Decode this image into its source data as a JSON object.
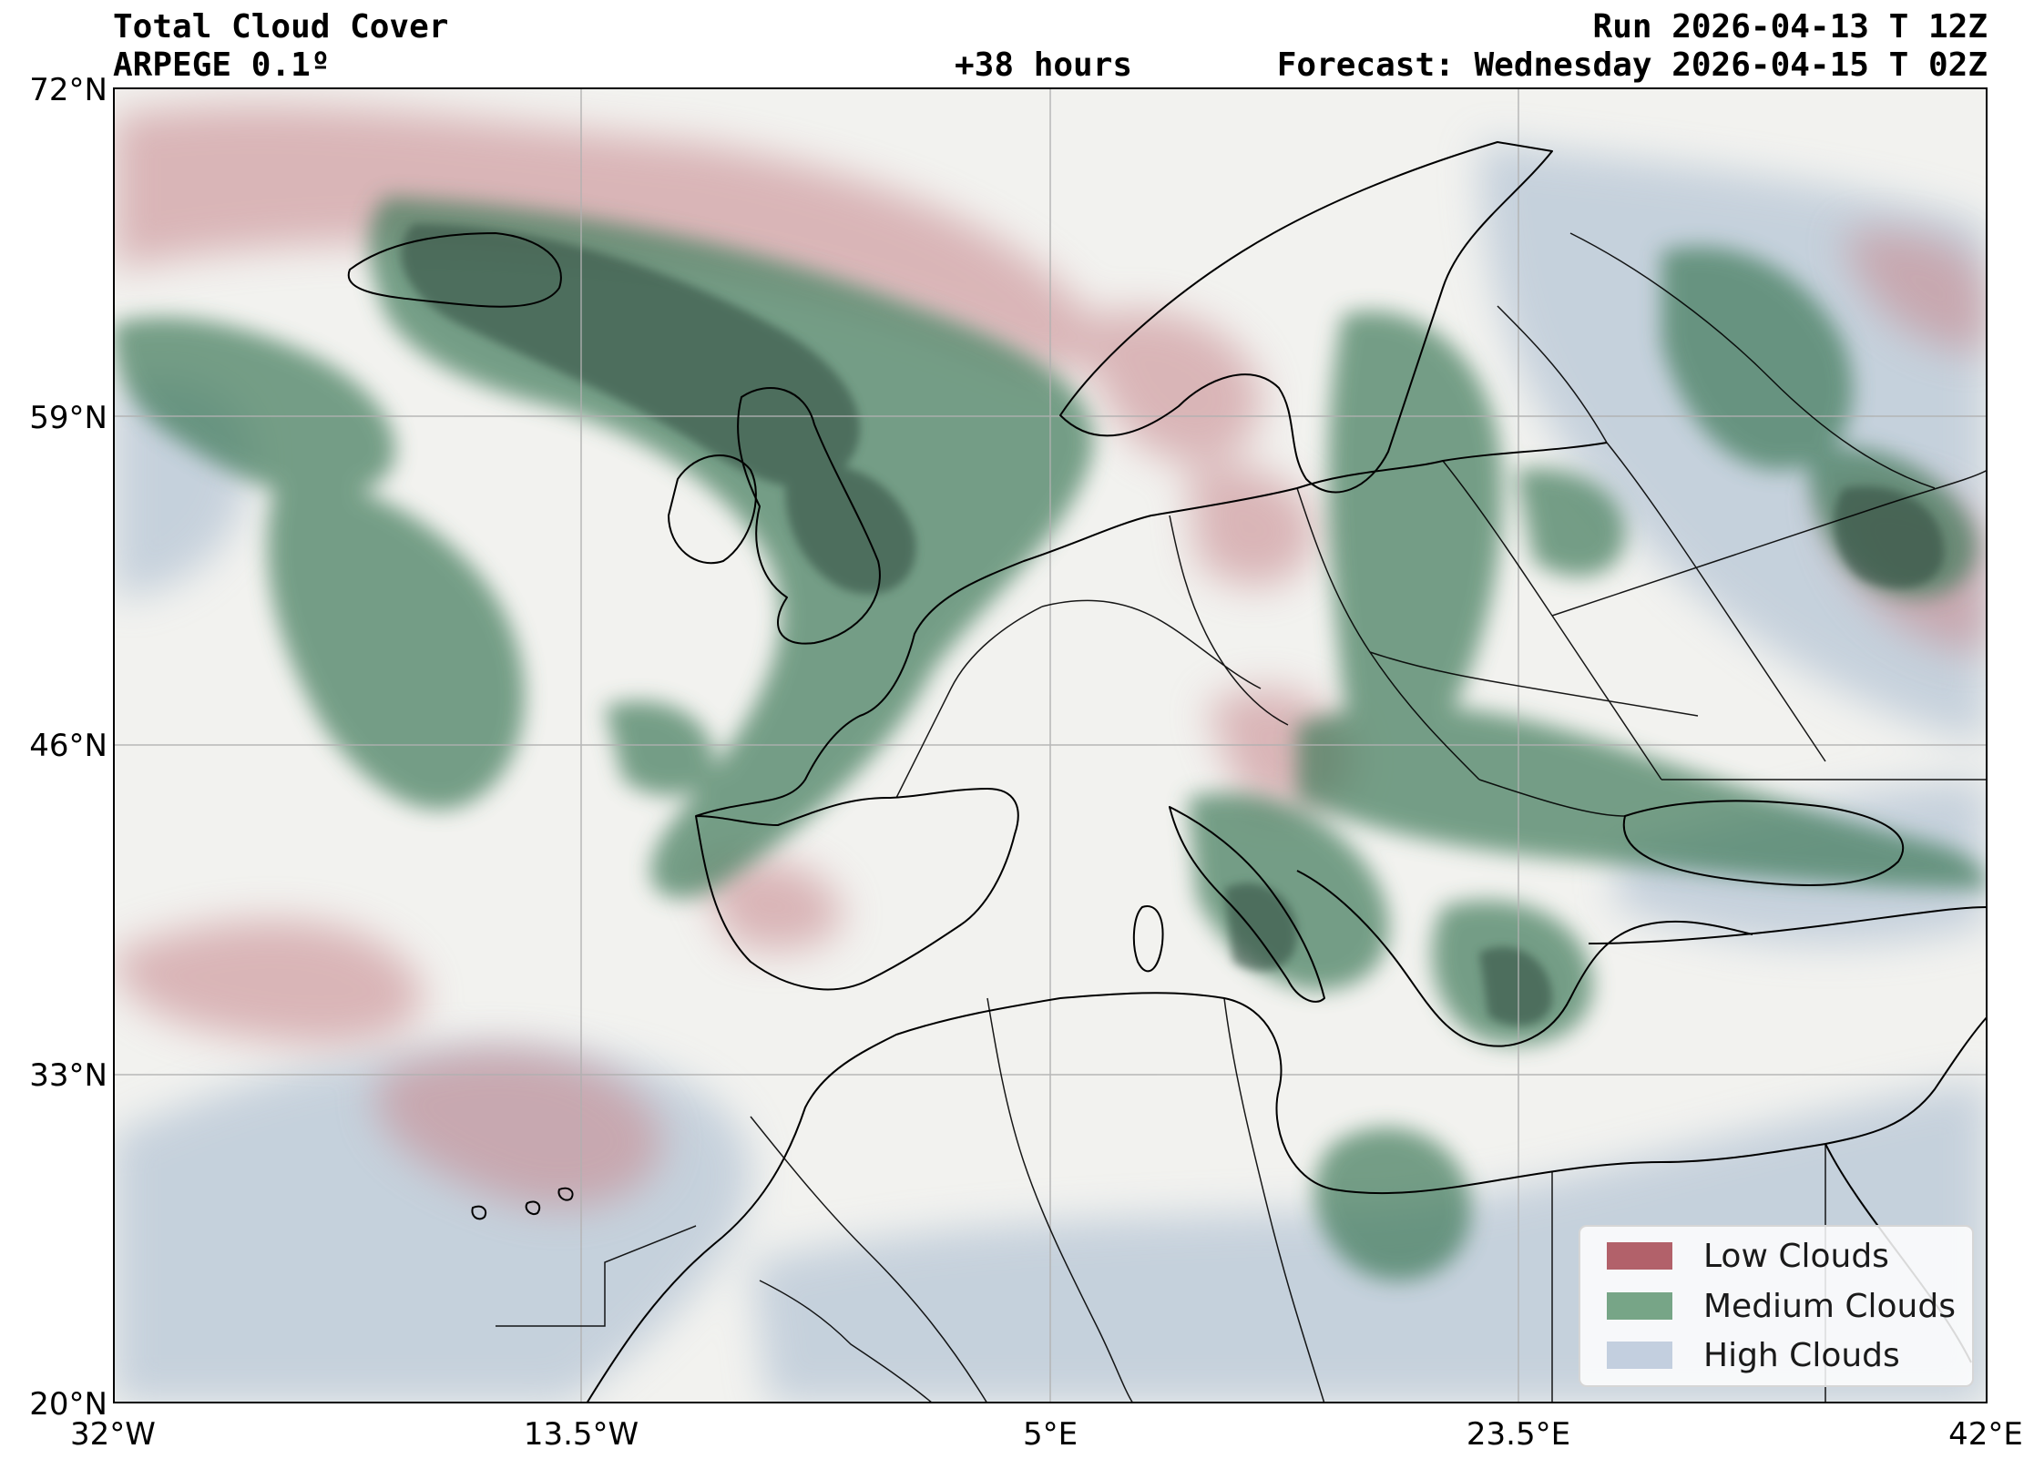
{
  "header": {
    "title": "Total Cloud Cover",
    "model": "ARPEGE 0.1º",
    "run": "Run 2026-04-13 T 12Z",
    "lead": "+38 hours",
    "forecast": "Forecast: Wednesday 2026-04-15 T 02Z"
  },
  "axes": {
    "lat_labels": [
      "72°N",
      "59°N",
      "46°N",
      "33°N",
      "20°N"
    ],
    "lon_labels": [
      "32°W",
      "13.5°W",
      "5°E",
      "23.5°E",
      "42°E"
    ]
  },
  "legend": {
    "position": "bottom-right",
    "items": [
      {
        "label": "Low Clouds",
        "color": "#b2616a"
      },
      {
        "label": "Medium Clouds",
        "color": "#77a587"
      },
      {
        "label": "High Clouds",
        "color": "#c3cfdf"
      }
    ]
  },
  "colors": {
    "background": "#f2f2ef",
    "low": "#b2616a",
    "medium": "#3f7a5a",
    "high": "#b7c6d6",
    "coast": "#000000"
  }
}
